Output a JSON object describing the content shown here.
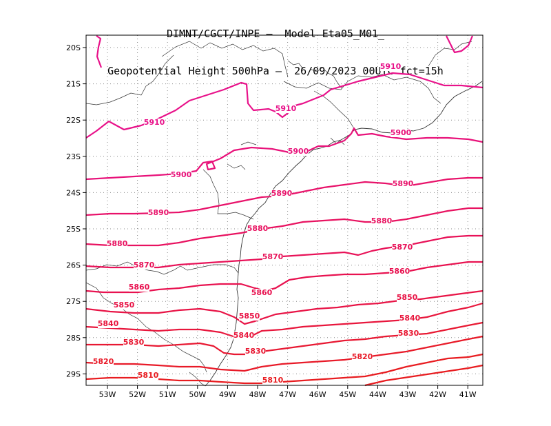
{
  "title": {
    "line1": "DIMNT/CGCT/INPE –  Model Eta05_M01_",
    "line2": "Geopotential Height 500hPa –  26/09/2023 00UTC fct=15h"
  },
  "lon_labels": [
    "53W",
    "52W",
    "51W",
    "50W",
    "49W",
    "48W",
    "47W",
    "46W",
    "45W",
    "44W",
    "43W",
    "42W",
    "41W"
  ],
  "lat_labels": [
    "20S",
    "21S",
    "22S",
    "23S",
    "24S",
    "25S",
    "26S",
    "27S",
    "28S",
    "29S"
  ],
  "contours": [
    {
      "value": 5910,
      "color": "#e8128a",
      "labels": [
        "5910",
        "5910",
        "5910"
      ]
    },
    {
      "value": 5900,
      "color": "#e8127a",
      "labels": [
        "5900",
        "5900",
        "5900"
      ]
    },
    {
      "value": 5890,
      "color": "#e8126a",
      "labels": [
        "5890",
        "5890",
        "5890"
      ]
    },
    {
      "value": 5880,
      "color": "#e81260",
      "labels": [
        "5880",
        "5880",
        "5880"
      ]
    },
    {
      "value": 5870,
      "color": "#e81258",
      "labels": [
        "5870",
        "5870",
        "5870"
      ]
    },
    {
      "value": 5860,
      "color": "#e81250",
      "labels": [
        "5860",
        "5860",
        "5860"
      ]
    },
    {
      "value": 5850,
      "color": "#e81446",
      "labels": [
        "5850",
        "5850",
        "5850"
      ]
    },
    {
      "value": 5840,
      "color": "#e8163c",
      "labels": [
        "5840",
        "5840",
        "5840"
      ]
    },
    {
      "value": 5830,
      "color": "#e81832",
      "labels": [
        "5830",
        "5830",
        "5830"
      ]
    },
    {
      "value": 5820,
      "color": "#e81a28",
      "labels": [
        "5820",
        "5820"
      ]
    },
    {
      "value": 5810,
      "color": "#e81c20",
      "labels": [
        "5810",
        "5810"
      ]
    }
  ],
  "colors": {
    "grid": "#888888",
    "coast": "#333333",
    "frame": "#000000"
  }
}
